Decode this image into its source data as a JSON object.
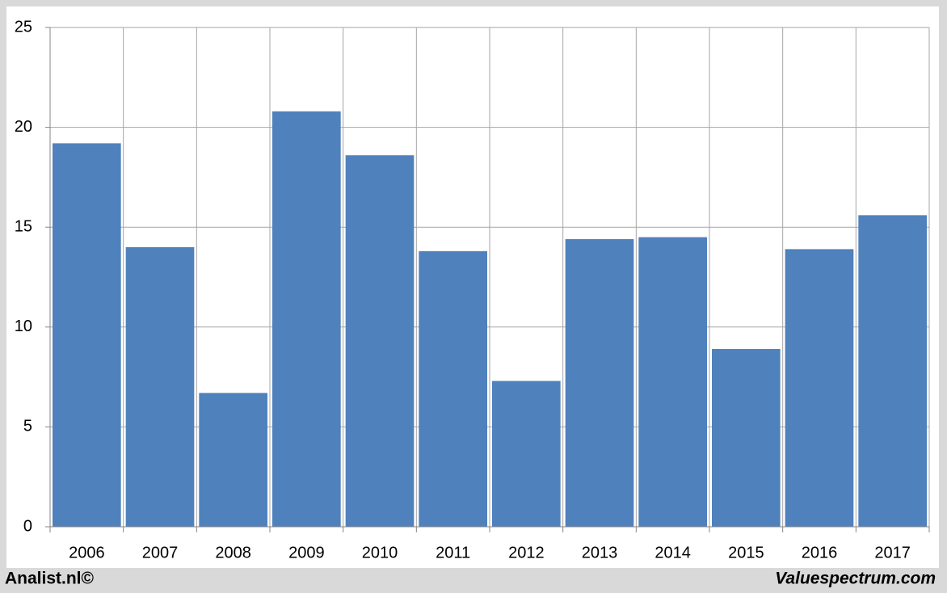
{
  "chart_data": {
    "type": "bar",
    "categories": [
      "2006",
      "2007",
      "2008",
      "2009",
      "2010",
      "2011",
      "2012",
      "2013",
      "2014",
      "2015",
      "2016",
      "2017"
    ],
    "values": [
      19.2,
      14.0,
      6.7,
      20.8,
      18.6,
      13.8,
      7.3,
      14.4,
      14.5,
      8.9,
      13.9,
      15.6
    ],
    "color": "#4f81bd",
    "ylim": [
      0,
      25
    ],
    "yticks": [
      0,
      5,
      10,
      15,
      20,
      25
    ],
    "grid": true,
    "source_left": "Analist.nl©",
    "source_right": "Valuespectrum.com"
  }
}
